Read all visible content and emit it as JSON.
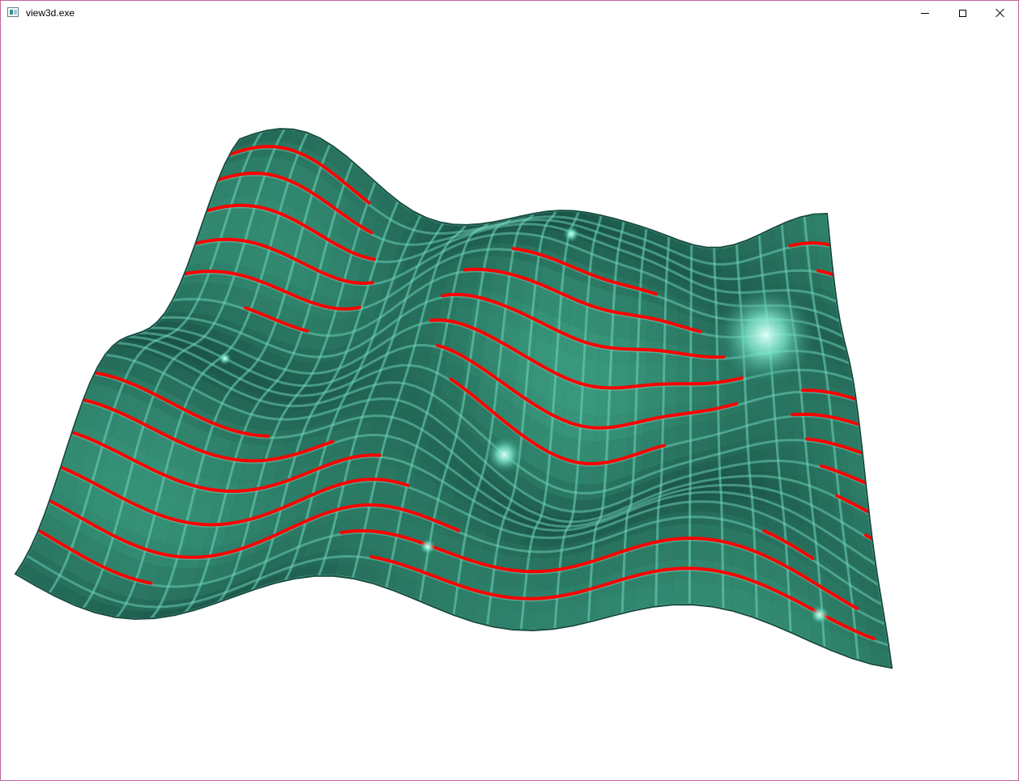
{
  "window": {
    "title": "view3d.exe",
    "app_icon": "application-window-icon",
    "controls": {
      "minimize": "minimize-icon",
      "maximize": "maximize-icon",
      "close": "close-icon"
    }
  },
  "scene": {
    "description_type": "3d-textured-height-surface",
    "colors": {
      "surface_base": "#1f5a4c",
      "surface_highlight": "#7fe8d0",
      "grid_lines": "#6fd6bc",
      "ridge_lines": "#ff0000",
      "background": "#ffffff"
    }
  }
}
